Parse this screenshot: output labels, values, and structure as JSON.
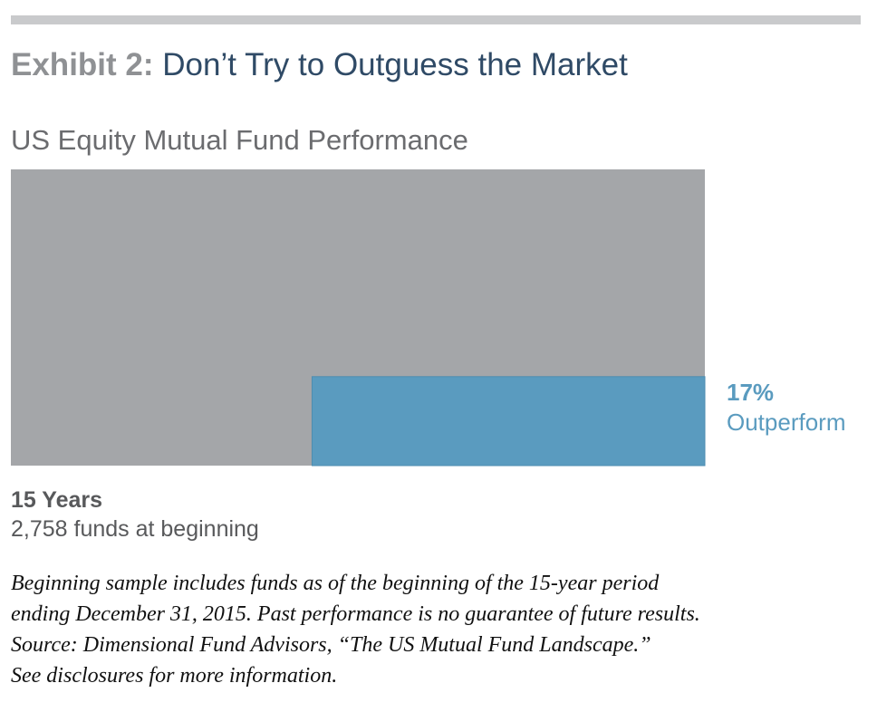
{
  "header": {
    "exhibit_label": "Exhibit 2:",
    "title": "Don’t Try to Outguess the Market"
  },
  "chart_data": {
    "type": "bar",
    "title": "US Equity Mutual Fund Performance",
    "period": "15 Years",
    "funds_at_beginning": "2,758 funds at beginning",
    "total_funds": 2758,
    "outperform_fraction": 0.17,
    "outperform_value": "17%",
    "outperform_label": "Outperform",
    "colors": {
      "total": "#a4a6a9",
      "outperform": "#5a9bbf",
      "outperform_edge": "#4e8db0"
    }
  },
  "footnote": {
    "line1": "Beginning sample includes funds as of the beginning of the 15-year period",
    "line2": "ending December 31, 2015. Past performance is no guarantee of future results.",
    "line3": "Source: Dimensional Fund Advisors, “The US Mutual Fund Landscape.”",
    "line4": "See disclosures for more information."
  }
}
